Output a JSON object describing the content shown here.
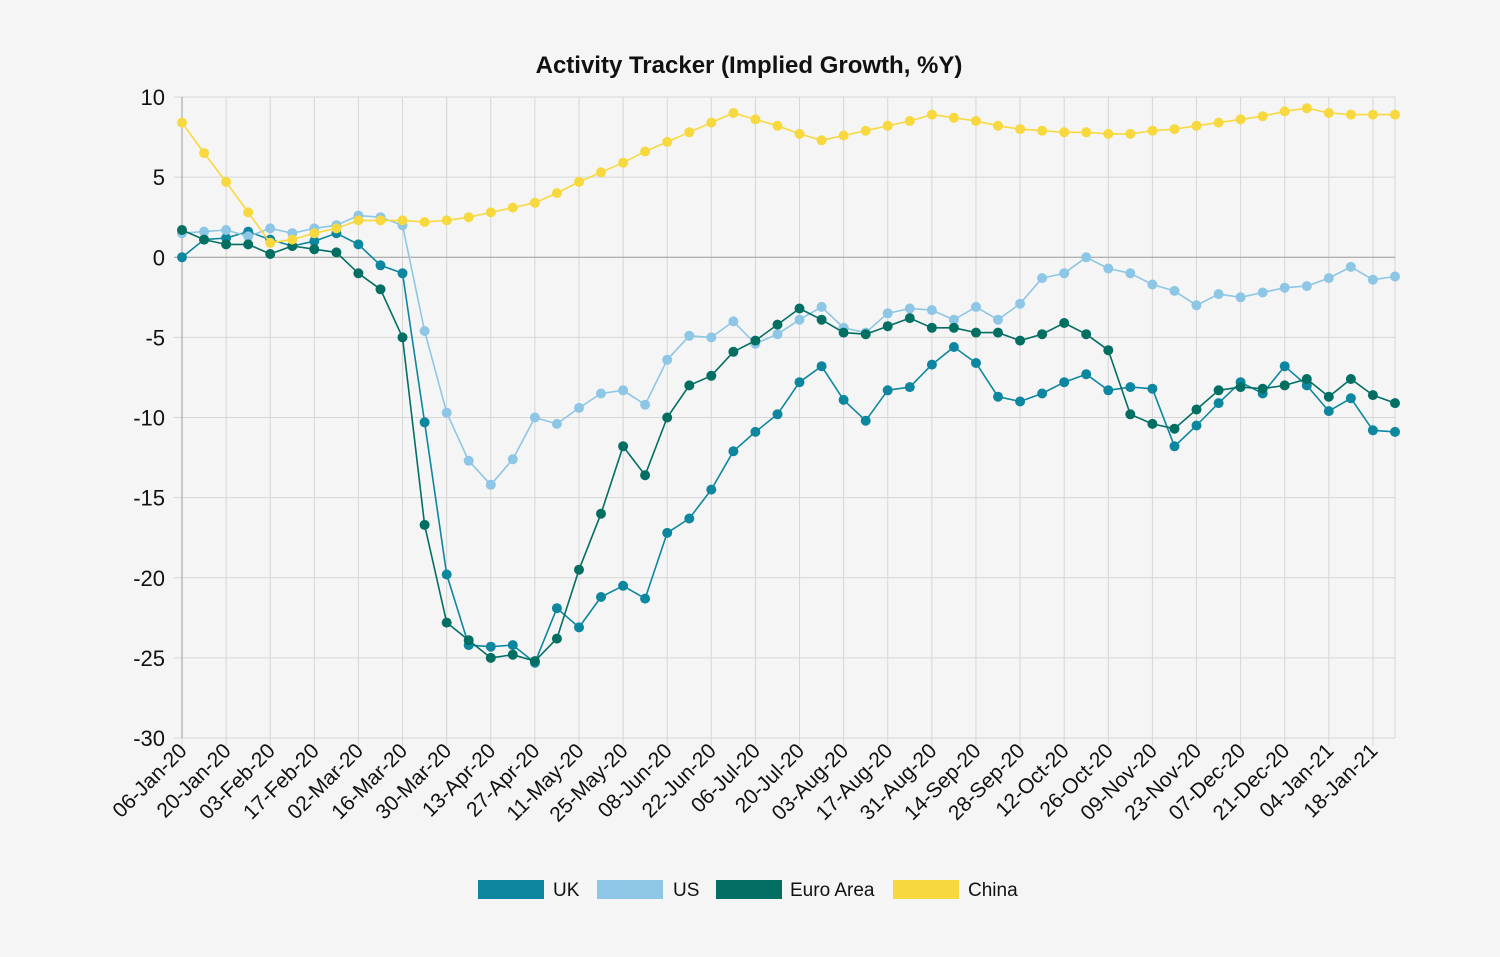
{
  "chart_data": {
    "type": "line",
    "title": "Activity Tracker (Implied Growth, %Y)",
    "xlabel": "",
    "ylabel": "",
    "ylim": [
      -30,
      10
    ],
    "yticks": [
      10,
      5,
      0,
      -5,
      -10,
      -15,
      -20,
      -25,
      -30
    ],
    "grid": true,
    "legend_position": "bottom",
    "x": [
      "06-Jan-20",
      "13-Jan-20",
      "20-Jan-20",
      "27-Jan-20",
      "03-Feb-20",
      "10-Feb-20",
      "17-Feb-20",
      "24-Feb-20",
      "02-Mar-20",
      "09-Mar-20",
      "16-Mar-20",
      "23-Mar-20",
      "30-Mar-20",
      "06-Apr-20",
      "13-Apr-20",
      "20-Apr-20",
      "27-Apr-20",
      "04-May-20",
      "11-May-20",
      "18-May-20",
      "25-May-20",
      "01-Jun-20",
      "08-Jun-20",
      "15-Jun-20",
      "22-Jun-20",
      "29-Jun-20",
      "06-Jul-20",
      "13-Jul-20",
      "20-Jul-20",
      "27-Jul-20",
      "03-Aug-20",
      "10-Aug-20",
      "17-Aug-20",
      "24-Aug-20",
      "31-Aug-20",
      "07-Sep-20",
      "14-Sep-20",
      "21-Sep-20",
      "28-Sep-20",
      "05-Oct-20",
      "12-Oct-20",
      "19-Oct-20",
      "26-Oct-20",
      "02-Nov-20",
      "09-Nov-20",
      "16-Nov-20",
      "23-Nov-20",
      "30-Nov-20",
      "07-Dec-20",
      "14-Dec-20",
      "21-Dec-20",
      "28-Dec-20",
      "04-Jan-21",
      "11-Jan-21",
      "18-Jan-21",
      "25-Jan-21"
    ],
    "xtick_labels": [
      "06-Jan-20",
      "20-Jan-20",
      "03-Feb-20",
      "17-Feb-20",
      "02-Mar-20",
      "16-Mar-20",
      "30-Mar-20",
      "13-Apr-20",
      "27-Apr-20",
      "11-May-20",
      "25-May-20",
      "08-Jun-20",
      "22-Jun-20",
      "06-Jul-20",
      "20-Jul-20",
      "03-Aug-20",
      "17-Aug-20",
      "31-Aug-20",
      "14-Sep-20",
      "28-Sep-20",
      "12-Oct-20",
      "26-Oct-20",
      "09-Nov-20",
      "23-Nov-20",
      "07-Dec-20",
      "21-Dec-20",
      "04-Jan-21",
      "18-Jan-21"
    ],
    "series": [
      {
        "name": "UK",
        "color": "#0d879f",
        "values": [
          0.0,
          1.1,
          1.2,
          1.6,
          1.1,
          0.7,
          1.0,
          1.5,
          0.8,
          -0.5,
          -1.0,
          -10.3,
          -19.8,
          -24.2,
          -24.3,
          -24.2,
          -25.3,
          -21.9,
          -23.1,
          -21.2,
          -20.5,
          -21.3,
          -17.2,
          -16.3,
          -14.5,
          -12.1,
          -10.9,
          -9.8,
          -7.8,
          -6.8,
          -8.9,
          -10.2,
          -8.3,
          -8.1,
          -6.7,
          -5.6,
          -6.6,
          -8.7,
          -9.0,
          -8.5,
          -7.8,
          -7.3,
          -8.3,
          -8.1,
          -8.2,
          -11.8,
          -10.5,
          -9.1,
          -7.8,
          -8.5,
          -6.8,
          -8.0,
          -9.6,
          -8.8,
          -10.8,
          -10.9
        ]
      },
      {
        "name": "US",
        "color": "#8ec6e6",
        "values": [
          1.5,
          1.6,
          1.7,
          1.3,
          1.8,
          1.5,
          1.8,
          2.0,
          2.6,
          2.5,
          2.0,
          -4.6,
          -9.7,
          -12.7,
          -14.2,
          -12.6,
          -10.0,
          -10.4,
          -9.4,
          -8.5,
          -8.3,
          -9.2,
          -6.4,
          -4.9,
          -5.0,
          -4.0,
          -5.4,
          -4.8,
          -3.9,
          -3.1,
          -4.4,
          -4.7,
          -3.5,
          -3.2,
          -3.3,
          -3.9,
          -3.1,
          -3.9,
          -2.9,
          -1.3,
          -1.0,
          0.0,
          -0.7,
          -1.0,
          -1.7,
          -2.1,
          -3.0,
          -2.3,
          -2.5,
          -2.2,
          -1.9,
          -1.8,
          -1.3,
          -0.6,
          -1.4,
          -1.2
        ]
      },
      {
        "name": "Euro Area",
        "color": "#036f63",
        "values": [
          1.7,
          1.1,
          0.8,
          0.8,
          0.2,
          0.7,
          0.5,
          0.3,
          -1.0,
          -2.0,
          -5.0,
          -16.7,
          -22.8,
          -23.9,
          -25.0,
          -24.8,
          -25.2,
          -23.8,
          -19.5,
          -16.0,
          -11.8,
          -13.6,
          -10.0,
          -8.0,
          -7.4,
          -5.9,
          -5.2,
          -4.2,
          -3.2,
          -3.9,
          -4.7,
          -4.8,
          -4.3,
          -3.8,
          -4.4,
          -4.4,
          -4.7,
          -4.7,
          -5.2,
          -4.8,
          -4.1,
          -4.8,
          -5.8,
          -9.8,
          -10.4,
          -10.7,
          -9.5,
          -8.3,
          -8.1,
          -8.2,
          -8.0,
          -7.6,
          -8.7,
          -7.6,
          -8.6,
          -9.1
        ]
      },
      {
        "name": "China",
        "color": "#f7d93f",
        "values": [
          8.4,
          6.5,
          4.7,
          2.8,
          0.9,
          1.1,
          1.5,
          1.8,
          2.3,
          2.3,
          2.3,
          2.2,
          2.3,
          2.5,
          2.8,
          3.1,
          3.4,
          4.0,
          4.7,
          5.3,
          5.9,
          6.6,
          7.2,
          7.8,
          8.4,
          9.0,
          8.6,
          8.2,
          7.7,
          7.3,
          7.6,
          7.9,
          8.2,
          8.5,
          8.9,
          8.7,
          8.5,
          8.2,
          8.0,
          7.9,
          7.8,
          7.8,
          7.7,
          7.7,
          7.9,
          8.0,
          8.2,
          8.4,
          8.6,
          8.8,
          9.1,
          9.3,
          9.0,
          8.9,
          8.9,
          8.9
        ]
      }
    ]
  }
}
